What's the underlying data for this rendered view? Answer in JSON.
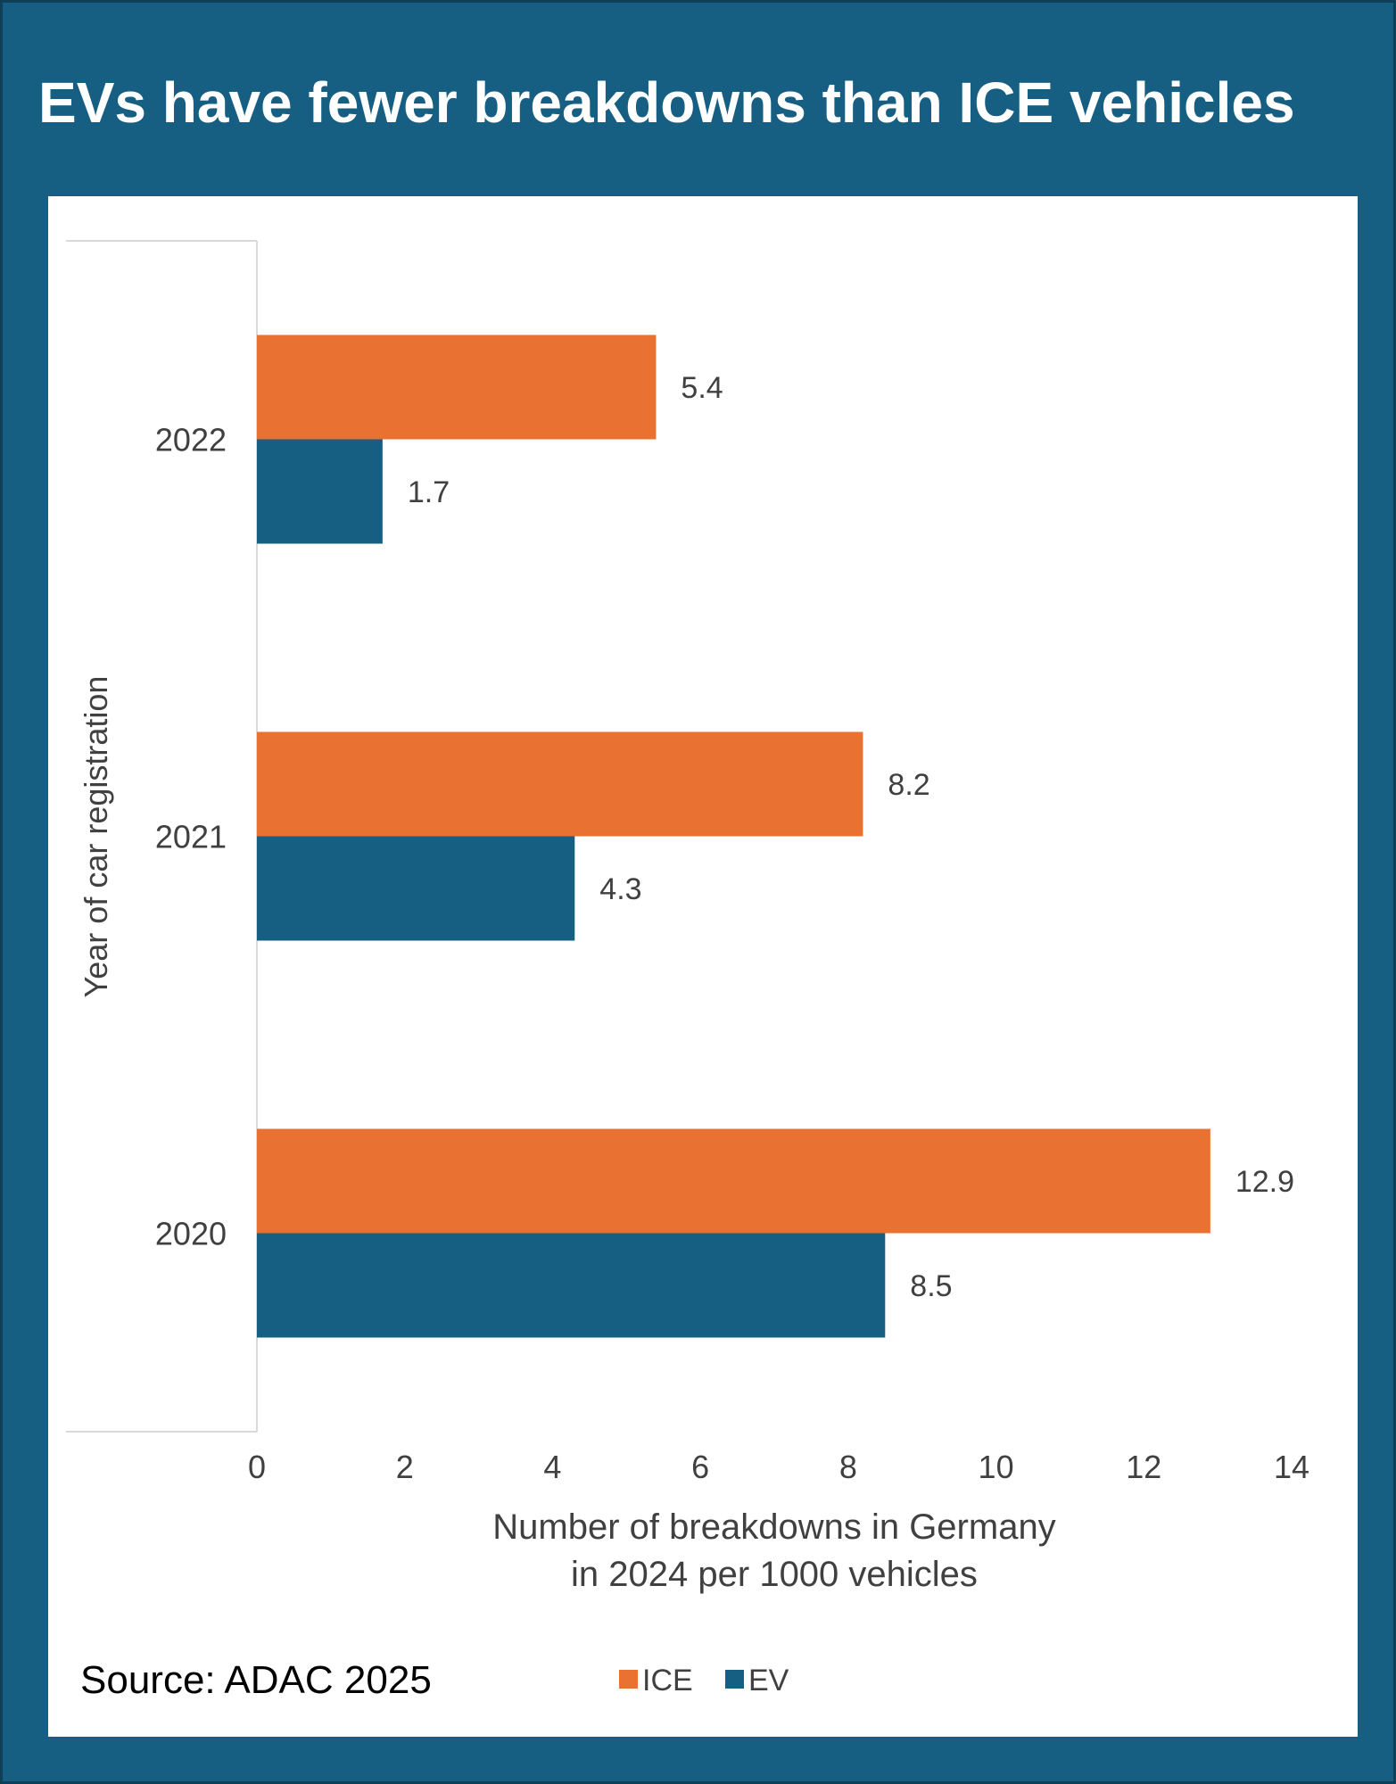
{
  "title": "EVs have fewer breakdowns than ICE vehicles",
  "source": "Source: ADAC 2025",
  "colors": {
    "frame": "#165f82",
    "ice": "#e97132",
    "ev": "#165f82",
    "text": "#404040",
    "axis": "#d9d9d9"
  },
  "chart_data": {
    "type": "bar",
    "orientation": "horizontal",
    "categories": [
      "2022",
      "2021",
      "2020"
    ],
    "series": [
      {
        "name": "ICE",
        "values": [
          5.4,
          8.2,
          12.9
        ],
        "labels": [
          "5.4",
          "8.2",
          "12.9"
        ]
      },
      {
        "name": "EV",
        "values": [
          1.7,
          4.3,
          8.5
        ],
        "labels": [
          "1.7",
          "4.3",
          "8.5"
        ]
      }
    ],
    "xlim": [
      0,
      14
    ],
    "xticks": [
      "0",
      "2",
      "4",
      "6",
      "8",
      "10",
      "12",
      "14"
    ],
    "xlabel": [
      "Number of breakdowns in Germany",
      "in 2024 per 1000 vehicles"
    ],
    "ylabel": "Year of car registration",
    "legend": [
      "ICE",
      "EV"
    ],
    "legend_position": "bottom",
    "grid": false
  }
}
